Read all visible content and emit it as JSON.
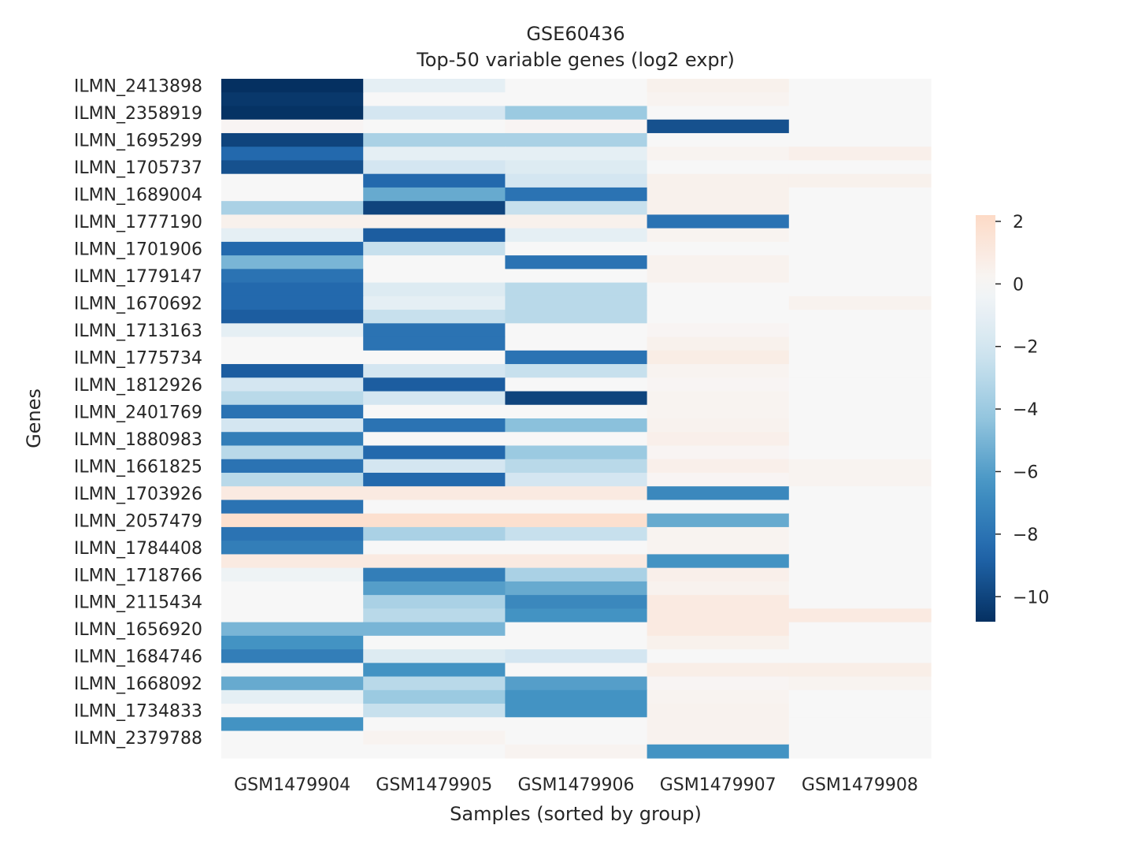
{
  "chart_data": {
    "type": "heatmap",
    "title": "GSE60436",
    "subtitle": "Top-50 variable genes (log2 expr)",
    "xlabel": "Samples (sorted by group)",
    "ylabel": "Genes",
    "columns": [
      "GSM1479904",
      "GSM1479905",
      "GSM1479906",
      "GSM1479907",
      "GSM1479908"
    ],
    "row_tick_labels": [
      "ILMN_2413898",
      "ILMN_2358919",
      "ILMN_1695299",
      "ILMN_1705737",
      "ILMN_1689004",
      "ILMN_1777190",
      "ILMN_1701906",
      "ILMN_1779147",
      "ILMN_1670692",
      "ILMN_1713163",
      "ILMN_1775734",
      "ILMN_1812926",
      "ILMN_2401769",
      "ILMN_1880983",
      "ILMN_1661825",
      "ILMN_1703926",
      "ILMN_2057479",
      "ILMN_1784408",
      "ILMN_1718766",
      "ILMN_2115434",
      "ILMN_1656920",
      "ILMN_1684746",
      "ILMN_1668092",
      "ILMN_1734833",
      "ILMN_2379788"
    ],
    "values": [
      [
        -10.8,
        -1.0,
        0.0,
        0.5,
        0.0
      ],
      [
        -10.5,
        0.0,
        0.0,
        0.3,
        0.0
      ],
      [
        -10.7,
        -2.0,
        -4.0,
        0.0,
        0.0
      ],
      [
        0.2,
        0.0,
        0.2,
        -9.5,
        0.0
      ],
      [
        -10.0,
        -3.5,
        -3.5,
        0.0,
        0.0
      ],
      [
        -8.5,
        -1.0,
        -1.0,
        0.3,
        0.6
      ],
      [
        -9.5,
        -2.0,
        -1.5,
        0.0,
        0.0
      ],
      [
        0.0,
        -8.5,
        -2.0,
        0.5,
        0.5
      ],
      [
        0.0,
        -5.5,
        -8.0,
        0.5,
        0.0
      ],
      [
        -3.5,
        -10.0,
        -2.5,
        0.5,
        0.0
      ],
      [
        0.5,
        0.5,
        0.5,
        -8.0,
        0.0
      ],
      [
        -1.0,
        -9.0,
        -1.0,
        0.3,
        0.0
      ],
      [
        -8.5,
        -2.5,
        0.0,
        0.0,
        0.0
      ],
      [
        -5.0,
        0.0,
        -8.0,
        0.4,
        0.0
      ],
      [
        -8.0,
        0.0,
        0.0,
        0.4,
        0.0
      ],
      [
        -8.5,
        -1.5,
        -3.0,
        0.0,
        0.0
      ],
      [
        -8.5,
        -1.0,
        -3.0,
        0.0,
        0.4
      ],
      [
        -9.0,
        -2.5,
        -3.0,
        0.0,
        0.0
      ],
      [
        -1.0,
        -8.0,
        0.0,
        0.2,
        0.0
      ],
      [
        0.0,
        -8.0,
        0.0,
        0.5,
        0.0
      ],
      [
        0.0,
        0.0,
        -8.0,
        0.8,
        0.0
      ],
      [
        -9.0,
        -2.0,
        -2.5,
        0.3,
        0.0
      ],
      [
        -2.0,
        -9.0,
        0.0,
        0.2,
        0.0
      ],
      [
        -3.0,
        -2.0,
        -10.0,
        0.3,
        0.0
      ],
      [
        -8.0,
        0.0,
        0.0,
        0.3,
        0.0
      ],
      [
        -2.0,
        -8.0,
        -4.5,
        0.4,
        0.0
      ],
      [
        -7.5,
        0.0,
        0.0,
        0.6,
        0.0
      ],
      [
        -3.0,
        -8.5,
        -4.0,
        0.2,
        0.0
      ],
      [
        -8.0,
        -2.0,
        -3.0,
        0.6,
        0.3
      ],
      [
        -3.0,
        -8.5,
        -2.0,
        0.2,
        0.3
      ],
      [
        1.0,
        1.0,
        1.0,
        -7.0,
        0.0
      ],
      [
        -8.0,
        0.0,
        0.0,
        0.0,
        0.0
      ],
      [
        1.8,
        1.8,
        1.8,
        -5.5,
        0.0
      ],
      [
        -8.0,
        -3.5,
        -2.5,
        0.3,
        0.0
      ],
      [
        -7.5,
        0.0,
        0.0,
        0.3,
        0.0
      ],
      [
        1.0,
        1.0,
        1.0,
        -6.5,
        0.0
      ],
      [
        -0.5,
        -7.5,
        -3.5,
        0.6,
        0.0
      ],
      [
        0.0,
        -6.0,
        -5.5,
        0.4,
        0.0
      ],
      [
        0.0,
        -3.5,
        -7.0,
        1.0,
        0.0
      ],
      [
        0.0,
        -3.0,
        -6.5,
        1.0,
        1.0
      ],
      [
        -5.0,
        -5.0,
        0.0,
        1.0,
        0.0
      ],
      [
        -6.5,
        0.0,
        0.0,
        0.5,
        0.0
      ],
      [
        -7.5,
        -1.5,
        -2.0,
        0.0,
        0.0
      ],
      [
        0.0,
        -6.5,
        0.0,
        0.7,
        0.7
      ],
      [
        -5.5,
        -3.0,
        -6.0,
        0.2,
        0.3
      ],
      [
        -1.0,
        -4.0,
        -6.5,
        0.3,
        0.0
      ],
      [
        0.0,
        -2.5,
        -6.5,
        0.4,
        0.0
      ],
      [
        -6.5,
        0.0,
        0.0,
        0.4,
        0.0
      ],
      [
        0.0,
        0.3,
        0.0,
        0.4,
        0.0
      ],
      [
        0.0,
        0.0,
        0.3,
        -6.5,
        0.0
      ]
    ],
    "colorbar": {
      "vmin": -10.8,
      "vmax": 2.2,
      "ticks": [
        "2",
        "0",
        "−2",
        "−4",
        "−6",
        "−8",
        "−10"
      ],
      "tick_values": [
        2,
        0,
        -2,
        -4,
        -6,
        -8,
        -10
      ],
      "colormap": "RdBu_r",
      "center": 0
    },
    "grid": false
  }
}
